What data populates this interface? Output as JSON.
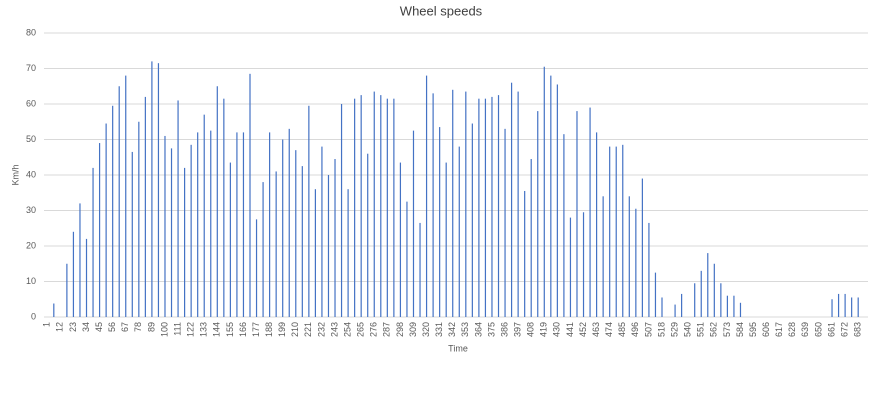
{
  "chart_data": {
    "type": "bar",
    "title": "Wheel speeds",
    "x_label": "Time",
    "y_label": "Km/h",
    "categories": [
      "1",
      null,
      "12",
      null,
      "23",
      null,
      "34",
      null,
      "45",
      null,
      "56",
      null,
      "67",
      null,
      "78",
      null,
      "89",
      null,
      "100",
      null,
      "111",
      null,
      "122",
      null,
      "133",
      null,
      "144",
      null,
      "155",
      null,
      "166",
      null,
      "177",
      null,
      "188",
      null,
      "199",
      null,
      "210",
      null,
      "221",
      null,
      "232",
      null,
      "243",
      null,
      "254",
      null,
      "265",
      null,
      "276",
      null,
      "287",
      null,
      "298",
      null,
      "309",
      null,
      "320",
      null,
      "331",
      null,
      "342",
      null,
      "353",
      null,
      "364",
      null,
      "375",
      null,
      "386",
      null,
      "397",
      null,
      "408",
      null,
      "419",
      null,
      "430",
      null,
      "441",
      null,
      "452",
      null,
      "463",
      null,
      "474",
      null,
      "485",
      null,
      "496",
      null,
      "507",
      null,
      "518",
      null,
      "529",
      null,
      "540",
      null,
      "551",
      null,
      "562",
      null,
      "573",
      null,
      "584",
      null,
      "595",
      null,
      "606",
      null,
      "617",
      null,
      "628",
      null,
      "639",
      null,
      "650",
      null,
      "661",
      null,
      "672",
      null,
      "683",
      null
    ],
    "values": [
      0,
      3.8,
      0,
      15,
      24,
      32,
      22,
      42,
      49,
      54.5,
      59.5,
      65,
      68,
      46.5,
      55,
      62,
      72,
      71.5,
      51,
      47.5,
      61,
      42,
      48.5,
      52,
      57,
      52.5,
      65,
      61.5,
      43.5,
      52,
      52,
      68.5,
      27.5,
      38,
      52,
      41,
      50,
      53,
      47,
      42.5,
      59.5,
      36,
      48,
      40,
      44.5,
      60,
      36,
      61.5,
      62.5,
      46,
      63.5,
      62.5,
      61.5,
      61.5,
      43.5,
      32.5,
      52.5,
      26.5,
      68,
      63,
      53.5,
      43.5,
      64,
      48,
      63.5,
      54.5,
      61.5,
      61.5,
      62,
      62.5,
      53,
      66,
      63.5,
      35.5,
      44.5,
      58,
      70.5,
      68,
      65.5,
      51.5,
      28,
      58,
      29.5,
      59,
      52,
      34,
      48,
      48,
      48.5,
      34,
      30.5,
      39,
      26.5,
      12.5,
      5.5,
      0,
      3.5,
      6.5,
      0,
      9.5,
      13,
      18,
      15,
      9.5,
      6,
      6,
      4,
      0,
      0,
      0,
      0,
      0,
      0,
      0,
      0,
      0,
      0,
      0,
      0,
      0,
      5,
      6.5,
      6.5,
      5.5,
      5.5,
      0
    ],
    "color": "#4472c4",
    "ylim": [
      0,
      80
    ],
    "yticks": [
      0,
      10,
      20,
      30,
      40,
      50,
      60,
      70,
      80
    ],
    "grid": true
  }
}
